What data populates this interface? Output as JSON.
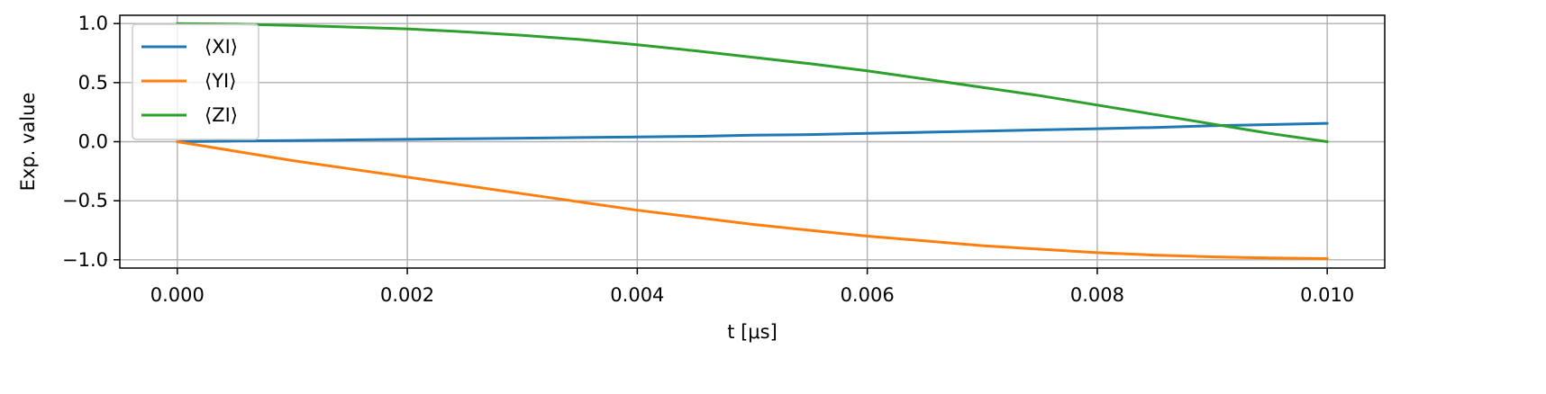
{
  "chart_data": {
    "type": "line",
    "xlabel": "t [μs]",
    "ylabel": "Exp. value",
    "xlim": [
      -0.0005,
      0.0105
    ],
    "ylim": [
      -1.07,
      1.07
    ],
    "x_ticks": [
      {
        "value": 0.0,
        "label": "0.000"
      },
      {
        "value": 0.002,
        "label": "0.002"
      },
      {
        "value": 0.004,
        "label": "0.004"
      },
      {
        "value": 0.006,
        "label": "0.006"
      },
      {
        "value": 0.008,
        "label": "0.008"
      },
      {
        "value": 0.01,
        "label": "0.010"
      }
    ],
    "y_ticks": [
      {
        "value": 1.0,
        "label": "1.0"
      },
      {
        "value": 0.5,
        "label": "0.5"
      },
      {
        "value": 0.0,
        "label": "0.0"
      },
      {
        "value": -0.5,
        "label": "−0.5"
      },
      {
        "value": -1.0,
        "label": "−1.0"
      }
    ],
    "grid": true,
    "legend_position": "top-left",
    "x": [
      0.0,
      0.0005,
      0.001,
      0.0015,
      0.002,
      0.0025,
      0.003,
      0.0035,
      0.004,
      0.0045,
      0.005,
      0.0055,
      0.006,
      0.0065,
      0.007,
      0.0075,
      0.008,
      0.0085,
      0.009,
      0.0095,
      0.01
    ],
    "series": [
      {
        "name": "⟨XI⟩",
        "color": "#1f77b4",
        "values": [
          0.0,
          0.005,
          0.01,
          0.015,
          0.02,
          0.025,
          0.03,
          0.035,
          0.04,
          0.045,
          0.055,
          0.06,
          0.07,
          0.08,
          0.09,
          0.1,
          0.11,
          0.12,
          0.135,
          0.145,
          0.155
        ]
      },
      {
        "name": "⟨YI⟩",
        "color": "#ff7f0e",
        "values": [
          0.0,
          -0.08,
          -0.16,
          -0.23,
          -0.3,
          -0.37,
          -0.44,
          -0.51,
          -0.58,
          -0.64,
          -0.7,
          -0.75,
          -0.8,
          -0.84,
          -0.88,
          -0.91,
          -0.94,
          -0.96,
          -0.975,
          -0.985,
          -0.99
        ]
      },
      {
        "name": "⟨ZI⟩",
        "color": "#2ca02c",
        "values": [
          1.0,
          0.995,
          0.985,
          0.97,
          0.955,
          0.93,
          0.9,
          0.865,
          0.82,
          0.77,
          0.715,
          0.66,
          0.6,
          0.53,
          0.46,
          0.39,
          0.31,
          0.23,
          0.15,
          0.07,
          0.0
        ]
      }
    ]
  }
}
